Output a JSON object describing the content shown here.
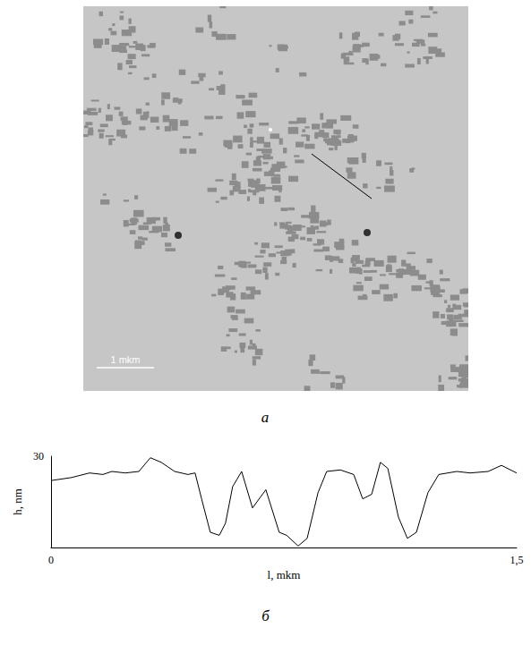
{
  "image": {
    "scale_bar": "1 mkm",
    "label": "а"
  },
  "chart_data": {
    "type": "line",
    "title": "б",
    "x_label": "l, mkm",
    "y_label": "h, nm",
    "x": [
      0,
      0.066,
      0.124,
      0.167,
      0.196,
      0.239,
      0.283,
      0.32,
      0.355,
      0.398,
      0.441,
      0.464,
      0.485,
      0.513,
      0.542,
      0.562,
      0.585,
      0.614,
      0.649,
      0.692,
      0.735,
      0.759,
      0.796,
      0.825,
      0.86,
      0.888,
      0.932,
      0.975,
      1.004,
      1.033,
      1.061,
      1.085,
      1.119,
      1.148,
      1.177,
      1.214,
      1.249,
      1.307,
      1.35,
      1.408,
      1.451,
      1.5
    ],
    "values": [
      22,
      23,
      24.5,
      24,
      25,
      24.5,
      25,
      29.5,
      28,
      25,
      24,
      24.5,
      16,
      5,
      4,
      8,
      20,
      25,
      13,
      19,
      5,
      4,
      0.5,
      3,
      18,
      25,
      25.5,
      24,
      16,
      17.5,
      28,
      26,
      10,
      3,
      5,
      18,
      24,
      25,
      24.5,
      25,
      27,
      24.5
    ],
    "color": "#000000",
    "xlim": [
      0,
      1.5
    ],
    "xticks": [
      0,
      {
        "value": 1.5,
        "label": "1,5"
      }
    ],
    "ylim": [
      0,
      30
    ],
    "yticks": [
      30
    ],
    "grid": false
  }
}
